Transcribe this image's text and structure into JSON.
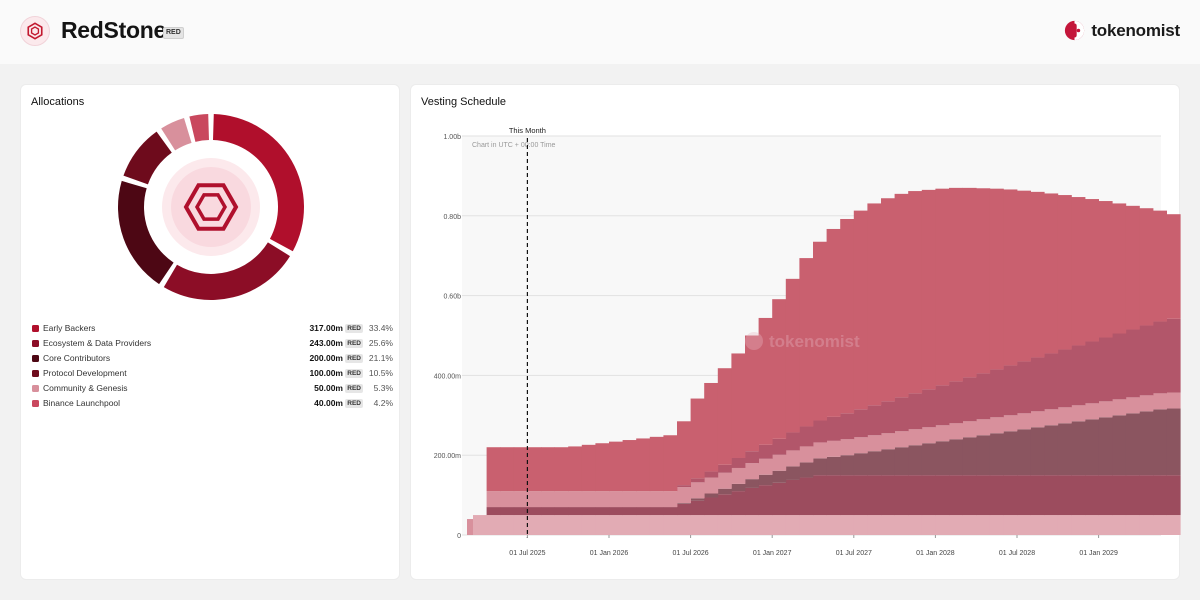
{
  "header": {
    "token_name": "RedStone",
    "token_ticker": "RED",
    "brand_name": "tokenomist",
    "token_icon": "redstone-hexagon-icon",
    "brand_icon": "tokenomist-logo-icon"
  },
  "colors": {
    "accent": "#b00f2c",
    "page_bg": "#f2f2f2"
  },
  "allocations": {
    "title": "Allocations",
    "items": [
      {
        "label": "Early Backers",
        "amount": "317.00m",
        "ticker": "RED",
        "pct": "33.4%",
        "value": 317,
        "color": "#b00f2c"
      },
      {
        "label": "Ecosystem & Data Providers",
        "amount": "243.00m",
        "ticker": "RED",
        "pct": "25.6%",
        "value": 243,
        "color": "#8c0d26"
      },
      {
        "label": "Core Contributors",
        "amount": "200.00m",
        "ticker": "RED",
        "pct": "21.1%",
        "value": 200,
        "color": "#4d0714"
      },
      {
        "label": "Protocol Development",
        "amount": "100.00m",
        "ticker": "RED",
        "pct": "10.5%",
        "value": 100,
        "color": "#6e0b1c"
      },
      {
        "label": "Community & Genesis",
        "amount": "50.00m",
        "ticker": "RED",
        "pct": "5.3%",
        "value": 50,
        "color": "#d8909c"
      },
      {
        "label": "Binance Launchpool",
        "amount": "40.00m",
        "ticker": "RED",
        "pct": "4.2%",
        "value": 40,
        "color": "#c9485e"
      }
    ]
  },
  "vesting": {
    "title": "Vesting Schedule",
    "marker_label": "This Month",
    "utc_note": "Chart in UTC + 00:00 Time",
    "watermark": "tokenomist"
  },
  "chart_data": [
    {
      "type": "pie",
      "title": "Allocations",
      "categories": [
        "Early Backers",
        "Ecosystem & Data Providers",
        "Core Contributors",
        "Protocol Development",
        "Community & Genesis",
        "Binance Launchpool"
      ],
      "values": [
        317,
        243,
        200,
        100,
        50,
        40
      ],
      "unit": "m RED"
    },
    {
      "type": "area",
      "title": "Vesting Schedule",
      "stacked": true,
      "x_start": "2025-03",
      "x_step": "month",
      "x_tick_labels": [
        "01 Jul 2025",
        "01 Jan 2026",
        "01 Jul 2026",
        "01 Jan 2027",
        "01 Jul 2027",
        "01 Jan 2028",
        "01 Jul 2028",
        "01 Jan 2029"
      ],
      "y_tick_labels": [
        "0",
        "200.00m",
        "400.00m",
        "0.60b",
        "0.80b",
        "1.00b"
      ],
      "ylim": [
        0,
        1000000000
      ],
      "grid": true,
      "marker": {
        "x": "2025-07",
        "label": "This Month"
      },
      "series": [
        {
          "color": "#e2abb4",
          "values": [
            50,
            50,
            50,
            50,
            50,
            50,
            50,
            50,
            50,
            50,
            50,
            50,
            50,
            50,
            50,
            50,
            50,
            50,
            50,
            50,
            50,
            50,
            50,
            50,
            50,
            50,
            50,
            50,
            50,
            50,
            50,
            50,
            50,
            50,
            50,
            50,
            50,
            50,
            50,
            50,
            50,
            50,
            50,
            50,
            50,
            50,
            50,
            50,
            50,
            50,
            50,
            50
          ]
        },
        {
          "color": "#9c4c5e",
          "values": [
            0,
            20,
            20,
            20,
            20,
            20,
            20,
            20,
            20,
            20,
            20,
            20,
            20,
            20,
            20,
            28,
            36,
            44,
            52,
            60,
            68,
            75,
            81,
            88,
            94,
            100,
            100,
            100,
            100,
            100,
            100,
            100,
            100,
            100,
            100,
            100,
            100,
            100,
            100,
            100,
            100,
            100,
            100,
            100,
            100,
            100,
            100,
            100,
            100,
            100,
            100,
            100
          ]
        },
        {
          "color": "#8b5560",
          "values": [
            0,
            0,
            0,
            0,
            0,
            0,
            0,
            0,
            0,
            0,
            0,
            0,
            0,
            0,
            0,
            2,
            6,
            10,
            14,
            18,
            22,
            26,
            30,
            34,
            38,
            42,
            46,
            50,
            55,
            60,
            65,
            70,
            75,
            80,
            85,
            90,
            95,
            100,
            105,
            110,
            115,
            120,
            125,
            130,
            135,
            140,
            145,
            150,
            155,
            160,
            165,
            167
          ]
        },
        {
          "color": "#d8909c",
          "values": [
            0,
            40,
            40,
            40,
            40,
            40,
            40,
            40,
            40,
            40,
            40,
            40,
            40,
            40,
            40,
            40,
            40,
            40,
            40,
            40,
            40,
            40,
            40,
            40,
            40,
            40,
            40,
            40,
            40,
            40,
            40,
            40,
            40,
            40,
            40,
            40,
            40,
            40,
            40,
            40,
            40,
            40,
            40,
            40,
            40,
            40,
            40,
            40,
            40,
            40,
            40,
            40
          ]
        },
        {
          "color": "#b2566a",
          "values": [
            0,
            0,
            0,
            0,
            0,
            0,
            0,
            0,
            0,
            0,
            0,
            0,
            0,
            0,
            0,
            5,
            10,
            15,
            20,
            25,
            30,
            35,
            40,
            45,
            50,
            55,
            60,
            65,
            70,
            75,
            80,
            85,
            90,
            95,
            100,
            105,
            110,
            115,
            120,
            125,
            130,
            135,
            140,
            145,
            150,
            155,
            160,
            165,
            170,
            175,
            180,
            185
          ]
        },
        {
          "color": "#c9606f",
          "values": [
            0,
            110,
            110,
            110,
            110,
            110,
            110,
            112,
            116,
            120,
            124,
            128,
            132,
            136,
            140,
            160,
            200,
            222,
            242,
            262,
            290,
            318,
            350,
            385,
            422,
            448,
            471,
            487,
            498,
            506,
            509,
            510,
            507,
            500,
            493,
            485,
            475,
            464,
            453,
            441,
            428,
            415,
            401,
            387,
            372,
            357,
            342,
            326,
            310,
            294,
            278,
            262
          ]
        }
      ]
    }
  ]
}
